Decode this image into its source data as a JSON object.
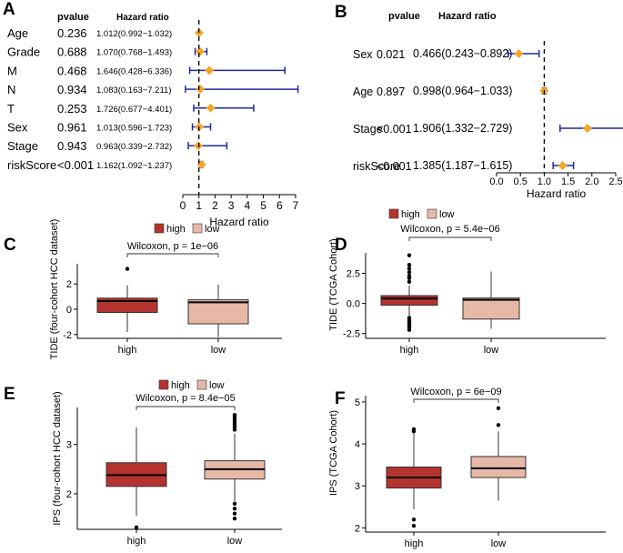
{
  "colors": {
    "high": "#b5332e",
    "low": "#e6b9a6",
    "point": "#f5a623",
    "ci": "#1f2aa0",
    "axis": "#000000",
    "refline": "#000000",
    "frame": "#bdbdbd"
  },
  "chart_data": [
    {
      "type": "forest",
      "panel_label": "A",
      "header_pvalue": "pvalue",
      "header_hr": "Hazard  ratio",
      "xlabel": "Hazard ratio",
      "xlim": [
        0,
        7
      ],
      "xticks": [
        "0",
        "1",
        "2",
        "3",
        "4",
        "5",
        "6",
        "7"
      ],
      "ref": 1,
      "rows": [
        {
          "name": "Age",
          "p": "0.236",
          "hr_text": "1.012(0.992−1.032)",
          "hr": 1.012,
          "lo": 0.992,
          "hi": 1.032
        },
        {
          "name": "Grade",
          "p": "0.688",
          "hr_text": "1.070(0.768−1.493)",
          "hr": 1.07,
          "lo": 0.768,
          "hi": 1.493
        },
        {
          "name": "M",
          "p": "0.468",
          "hr_text": "1.646(0.428−6.336)",
          "hr": 1.646,
          "lo": 0.428,
          "hi": 6.336
        },
        {
          "name": "N",
          "p": "0.934",
          "hr_text": "1.083(0.163−7.211)",
          "hr": 1.083,
          "lo": 0.163,
          "hi": 7.211
        },
        {
          "name": "T",
          "p": "0.253",
          "hr_text": "1.726(0.677−4.401)",
          "hr": 1.726,
          "lo": 0.677,
          "hi": 4.401
        },
        {
          "name": "Sex",
          "p": "0.961",
          "hr_text": "1.013(0.596−1.723)",
          "hr": 1.013,
          "lo": 0.596,
          "hi": 1.723
        },
        {
          "name": "Stage",
          "p": "0.943",
          "hr_text": "0.963(0.339−2.732)",
          "hr": 0.963,
          "lo": 0.339,
          "hi": 2.732
        },
        {
          "name": "riskScore",
          "p": "<0.001",
          "hr_text": "1.162(1.092−1.237)",
          "hr": 1.162,
          "lo": 1.092,
          "hi": 1.237
        }
      ]
    },
    {
      "type": "forest",
      "panel_label": "B",
      "header_pvalue": "pvalue",
      "header_hr": "Hazard ratio",
      "xlabel": "Hazard ratio",
      "xlim": [
        0,
        2.5
      ],
      "xticks": [
        "0.0",
        "0.5",
        "1.0",
        "1.5",
        "2.0",
        "2.5"
      ],
      "ref": 1,
      "rows": [
        {
          "name": "Sex",
          "p": "0.021",
          "hr_text": "0.466(0.243−0.892)",
          "hr": 0.466,
          "lo": 0.243,
          "hi": 0.892
        },
        {
          "name": "Age",
          "p": "0.897",
          "hr_text": "0.998(0.964−1.033)",
          "hr": 0.998,
          "lo": 0.964,
          "hi": 1.033
        },
        {
          "name": "Stage",
          "p": "<0.001",
          "hr_text": "1.906(1.332−2.729)",
          "hr": 1.906,
          "lo": 1.332,
          "hi": 2.729
        },
        {
          "name": "riskScore",
          "p": "<0.001",
          "hr_text": "1.385(1.187−1.615)",
          "hr": 1.385,
          "lo": 1.187,
          "hi": 1.615
        }
      ]
    },
    {
      "type": "boxplot",
      "panel_label": "C",
      "legend": [
        "high",
        "low"
      ],
      "annotation": "Wilcoxon, p = 1e−06",
      "ylabel": "TIDE (four-cohort HCC dataset)",
      "categories": [
        "high",
        "low"
      ],
      "ylim": [
        -2.3,
        3.6
      ],
      "yticks": [
        -2,
        0,
        2
      ],
      "ytick_labels": [
        "-2",
        "0",
        "2"
      ],
      "boxes": [
        {
          "min": -1.8,
          "q1": -0.25,
          "median": 0.65,
          "q3": 0.88,
          "max": 1.9,
          "outliers": [
            3.2
          ]
        },
        {
          "min": -2.2,
          "q1": -1.15,
          "median": 0.55,
          "q3": 0.75,
          "max": 1.95,
          "outliers": []
        }
      ]
    },
    {
      "type": "boxplot",
      "panel_label": "D",
      "legend": [
        "high",
        "low"
      ],
      "annotation": "Wilcoxon, p = 5.4e−06",
      "ylabel": "TIDE (TCGA Cohort)",
      "categories": [
        "high",
        "low"
      ],
      "ylim": [
        -2.9,
        4.2
      ],
      "yticks": [
        -2.5,
        0,
        2.5
      ],
      "ytick_labels": [
        "-2.5",
        "0.0",
        "2.5"
      ],
      "boxes": [
        {
          "min": -1.0,
          "q1": -0.15,
          "median": 0.4,
          "q3": 0.65,
          "max": 1.5,
          "outliers": [
            4.0,
            3.2,
            2.9,
            2.6,
            2.3,
            2.1,
            1.8,
            -1.2,
            -1.4,
            -1.6,
            -1.8,
            -2.0,
            -2.2
          ]
        },
        {
          "min": -2.1,
          "q1": -1.3,
          "median": 0.3,
          "q3": 0.45,
          "max": 2.65,
          "outliers": []
        }
      ]
    },
    {
      "type": "boxplot",
      "panel_label": "E",
      "legend": [
        "high",
        "low"
      ],
      "annotation": "Wilcoxon, p = 8.4e−05",
      "ylabel": "IPS (four-cohort HCC dataset)",
      "categories": [
        "high",
        "low"
      ],
      "ylim": [
        1.28,
        3.75
      ],
      "yticks": [
        2,
        3
      ],
      "ytick_labels": [
        "2",
        "3"
      ],
      "boxes": [
        {
          "min": 1.55,
          "q1": 2.15,
          "median": 2.38,
          "q3": 2.63,
          "max": 3.35,
          "outliers": [
            1.32
          ]
        },
        {
          "min": 1.85,
          "q1": 2.3,
          "median": 2.5,
          "q3": 2.67,
          "max": 3.22,
          "outliers": [
            3.6,
            3.55,
            3.5,
            3.45,
            3.4,
            3.35,
            3.3,
            1.8,
            1.7,
            1.6,
            1.5
          ]
        }
      ]
    },
    {
      "type": "boxplot",
      "panel_label": "F",
      "legend": [
        "high",
        "low"
      ],
      "annotation": "Wilcoxon, p = 6e−09",
      "ylabel": "IPS (TCGA Cohort)",
      "categories": [
        "high",
        "low"
      ],
      "ylim": [
        1.9,
        5.15
      ],
      "yticks": [
        2,
        3,
        4,
        5
      ],
      "ytick_labels": [
        "2",
        "3",
        "4",
        "5"
      ],
      "boxes": [
        {
          "min": 2.45,
          "q1": 2.95,
          "median": 3.2,
          "q3": 3.45,
          "max": 4.25,
          "outliers": [
            4.35,
            4.3,
            2.2,
            2.05
          ]
        },
        {
          "min": 2.65,
          "q1": 3.2,
          "median": 3.42,
          "q3": 3.7,
          "max": 4.3,
          "outliers": [
            4.85,
            4.45
          ]
        }
      ]
    }
  ]
}
